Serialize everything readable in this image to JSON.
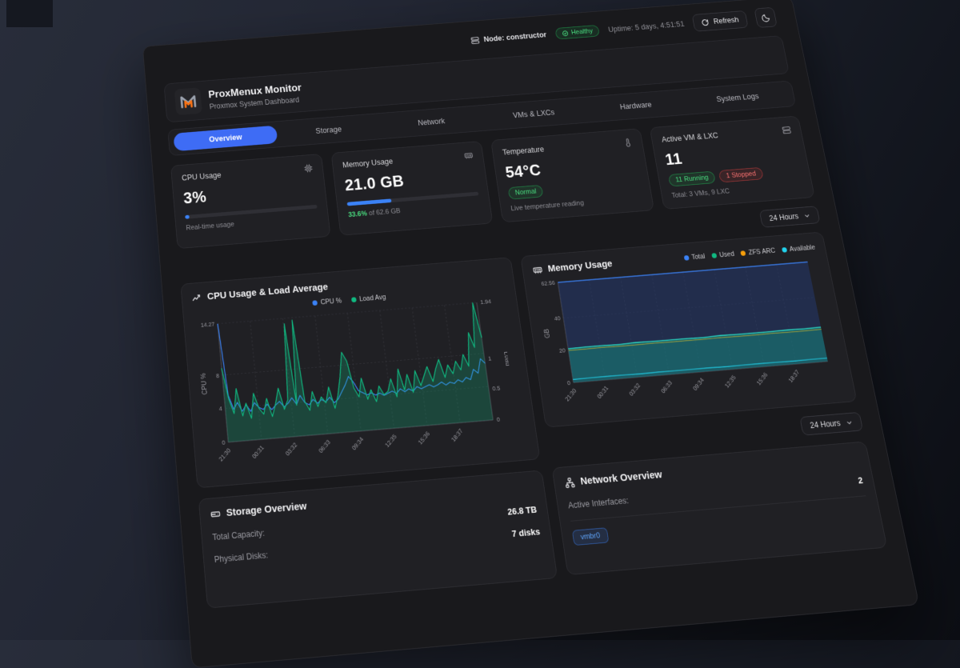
{
  "topbar": {
    "node_label": "Node: constructor",
    "health_label": "Healthy",
    "uptime": "Uptime: 5 days, 4:51:51",
    "refresh_label": "Refresh"
  },
  "header": {
    "title": "ProxMenux Monitor",
    "subtitle": "Proxmox System Dashboard"
  },
  "tabs": {
    "items": [
      "Overview",
      "Storage",
      "Network",
      "VMs & LXCs",
      "Hardware",
      "System Logs"
    ]
  },
  "stats": {
    "cpu": {
      "title": "CPU Usage",
      "value": "3%",
      "bar": "3%",
      "caption": "Real-time usage"
    },
    "memory": {
      "title": "Memory Usage",
      "value": "21.0 GB",
      "bar": "33.6%",
      "caption_pct": "33.6%",
      "caption_suffix": " of 62.6 GB"
    },
    "temperature": {
      "title": "Temperature",
      "value": "54°C",
      "badge": "Normal",
      "caption": "Live temperature reading"
    },
    "vms": {
      "title": "Active VM & LXC",
      "value": "11",
      "running": "11 Running",
      "stopped": "1 Stopped",
      "caption": "Total: 3 VMs, 9 LXC"
    }
  },
  "time_range": {
    "label": "24 Hours"
  },
  "time_range2": {
    "label": "24 Hours"
  },
  "storage": {
    "title": "Storage Overview",
    "rows": [
      {
        "label": "Total Capacity:",
        "value": "26.8 TB"
      },
      {
        "label": "Physical Disks:",
        "value": "7 disks"
      }
    ]
  },
  "network": {
    "title": "Network Overview",
    "rows": [
      {
        "label": "Active Interfaces:",
        "value": "2"
      }
    ],
    "badge": "vmbr0"
  },
  "chart_data": [
    {
      "type": "line",
      "title": "CPU Usage & Load Average",
      "legend": [
        {
          "name": "CPU %",
          "color": "#3b82f6"
        },
        {
          "name": "Load Avg",
          "color": "#10b981"
        }
      ],
      "x_ticks": [
        "21:30",
        "00:31",
        "03:32",
        "06:33",
        "09:34",
        "12:35",
        "15:36",
        "18:37"
      ],
      "left_axis": {
        "label": "CPU %",
        "ticks": [
          0,
          4,
          8,
          14.27
        ],
        "max": 14.27
      },
      "right_axis": {
        "label": "Load",
        "ticks": [
          0,
          0.5,
          1,
          1.94
        ],
        "max": 1.94
      },
      "grid": true,
      "series": [
        {
          "name": "CPU %",
          "axis": "left",
          "color": "#3b82f6",
          "width": 1.4,
          "values": [
            14.27,
            5.5,
            3.8,
            4.6,
            3.5,
            4.2,
            3.4,
            4.4,
            3.8,
            3.5,
            4.1,
            3.4,
            3.9,
            4.3,
            3.6,
            4.0,
            4.6,
            3.8,
            4.8,
            3.9,
            3.6,
            4.2,
            3.7,
            4.1,
            3.8,
            4.3,
            3.6,
            4.0,
            4.8,
            5.6,
            6.6,
            5.9,
            4.8,
            4.5,
            4.2,
            4.4,
            4.1,
            4.3,
            4.0,
            4.2,
            4.4,
            4.1,
            4.6,
            4.2,
            4.5,
            4.2,
            4.7,
            4.4,
            4.6,
            4.8,
            4.5,
            4.7,
            5.0,
            4.6,
            4.9,
            4.7,
            5.1,
            4.8,
            5.3,
            5.0,
            6.2,
            5.7,
            7.4,
            6.8
          ]
        },
        {
          "name": "Load Avg",
          "axis": "right",
          "color": "#10b981",
          "width": 1.4,
          "fill": "rgba(16,185,129,0.25)",
          "values": [
            1.2,
            0.7,
            0.45,
            0.85,
            0.4,
            0.6,
            0.35,
            0.75,
            0.5,
            0.4,
            0.65,
            0.35,
            0.55,
            0.8,
            0.45,
            0.6,
            1.85,
            0.5,
            1.9,
            0.55,
            0.4,
            0.7,
            0.45,
            0.6,
            0.5,
            0.75,
            0.4,
            0.6,
            0.9,
            1.3,
            1.15,
            0.7,
            0.55,
            0.85,
            0.5,
            0.65,
            0.45,
            0.7,
            0.55,
            0.6,
            0.8,
            0.5,
            0.95,
            0.6,
            0.85,
            0.55,
            0.9,
            0.65,
            0.8,
            0.95,
            0.7,
            0.9,
            1.05,
            0.75,
            0.95,
            0.8,
            1.0,
            0.85,
            1.1,
            0.9,
            1.45,
            1.2,
            1.94,
            1.35
          ]
        }
      ]
    },
    {
      "type": "area",
      "title": "Memory Usage",
      "legend": [
        {
          "name": "Total",
          "color": "#3b82f6"
        },
        {
          "name": "Used",
          "color": "#10b981"
        },
        {
          "name": "ZFS ARC",
          "color": "#f59e0b"
        },
        {
          "name": "Available",
          "color": "#22d3ee"
        }
      ],
      "x_ticks": [
        "21:30",
        "00:31",
        "03:32",
        "06:33",
        "09:34",
        "12:35",
        "15:36",
        "18:37"
      ],
      "left_axis": {
        "label": "GB",
        "ticks": [
          0,
          20,
          40,
          62.56
        ],
        "max": 62.56
      },
      "grid": true,
      "series": [
        {
          "name": "Total",
          "color": "#3b82f6",
          "width": 1.6,
          "fill": "rgba(37,57,110,0.55)",
          "values": [
            62.56,
            62.56,
            62.56,
            62.56,
            62.56,
            62.56,
            62.56,
            62.56,
            62.56,
            62.56,
            62.56,
            62.56,
            62.56,
            62.56,
            62.56,
            62.56
          ]
        },
        {
          "name": "ZFS ARC",
          "color": "#f59e0b",
          "width": 1.1,
          "values": [
            19.8,
            19.8,
            19.9,
            19.8,
            19.8,
            19.9,
            19.8,
            19.8,
            19.8,
            19.9,
            19.8,
            19.8,
            19.9,
            19.8,
            19.8,
            19.9
          ]
        },
        {
          "name": "Used",
          "color": "#2dd4bf",
          "width": 1.5,
          "fill": "rgba(20,150,132,0.45)",
          "values": [
            20.8,
            21.0,
            21.1,
            20.9,
            21.2,
            21.0,
            21.1,
            21.0,
            20.9,
            21.2,
            21.0,
            21.1,
            21.0,
            21.2,
            21.1,
            21.3
          ]
        },
        {
          "name": "Available",
          "color": "#22d3ee",
          "width": 1.2,
          "values": [
            1.9,
            2.0,
            2.1,
            2.0,
            1.9,
            2.1,
            2.0,
            2.0,
            2.1,
            1.9,
            2.0,
            2.1,
            2.0,
            1.9,
            2.0,
            2.0
          ]
        }
      ]
    }
  ]
}
